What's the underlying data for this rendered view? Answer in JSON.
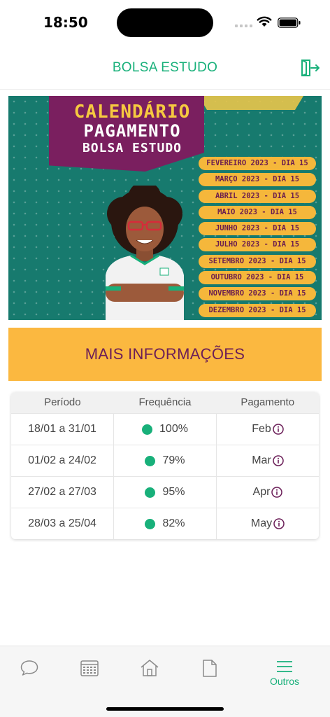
{
  "status_bar": {
    "time": "18:50"
  },
  "header": {
    "title": "BOLSA ESTUDO"
  },
  "banner": {
    "title_line1": "CALENDÁRIO",
    "title_line2": "PAGAMENTO",
    "title_line3": "BOLSA ESTUDO",
    "dates": [
      "FEVEREIRO 2023 - DIA 15",
      "MARÇO 2023 - DIA 15",
      "ABRIL 2023 - DIA 15",
      "MAIO 2023 - DIA 15",
      "JUNHO 2023 - DIA 15",
      "JULHO 2023 - DIA 15",
      "SETEMBRO 2023 - DIA 15",
      "OUTUBRO 2023 - DIA 15",
      "NOVEMBRO 2023 - DIA 15",
      "DEZEMBRO 2023 - DIA 15"
    ]
  },
  "more_info": {
    "label": "MAIS INFORMAÇÕES"
  },
  "table": {
    "headers": [
      "Período",
      "Frequência",
      "Pagamento"
    ],
    "rows": [
      {
        "period": "18/01 a 31/01",
        "frequency": "100%",
        "payment": "Feb"
      },
      {
        "period": "01/02 a 24/02",
        "frequency": "79%",
        "payment": "Mar"
      },
      {
        "period": "27/02 a 27/03",
        "frequency": "95%",
        "payment": "Apr"
      },
      {
        "period": "28/03 a 25/04",
        "frequency": "82%",
        "payment": "May"
      }
    ]
  },
  "bottom_nav": {
    "items": [
      {
        "icon": "chat-icon"
      },
      {
        "icon": "calendar-icon"
      },
      {
        "icon": "home-icon"
      },
      {
        "icon": "document-icon"
      },
      {
        "icon": "menu-icon",
        "label": "Outros"
      }
    ]
  },
  "colors": {
    "accent": "#18b07a",
    "banner": "#177a6e",
    "yellow": "#fbb840",
    "purple": "#6b1e58"
  }
}
